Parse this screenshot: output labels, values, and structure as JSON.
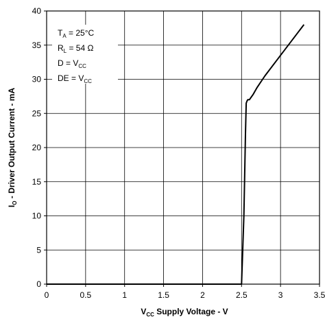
{
  "chart_data": {
    "type": "line",
    "x_axis": {
      "label_main": "V",
      "label_sub": "CC",
      "label_rest": " Supply Voltage - V",
      "range": [
        0,
        3.5
      ],
      "ticks": [
        "0",
        "0.5",
        "1",
        "1.5",
        "2",
        "2.5",
        "3",
        "3.5"
      ]
    },
    "y_axis": {
      "label_main": "I",
      "label_sub": "O",
      "label_rest": " - Driver Output Current - mA",
      "range": [
        0,
        40
      ],
      "ticks": [
        "0",
        "5",
        "10",
        "15",
        "20",
        "25",
        "30",
        "35",
        "40"
      ]
    },
    "grid": true,
    "annotations": [
      {
        "main": "T",
        "sub": "A",
        "rest": " = 25°C"
      },
      {
        "main": "R",
        "sub": "L",
        "rest": " = 54 Ω"
      },
      {
        "main": "D = V",
        "sub": "CC",
        "rest": ""
      },
      {
        "main": "DE = V",
        "sub": "CC",
        "rest": ""
      }
    ],
    "series": [
      {
        "x": [
          0,
          2.5,
          2.53,
          2.55,
          2.56,
          2.57,
          2.58,
          2.6,
          2.65,
          2.7,
          2.8,
          3.0,
          3.2,
          3.3
        ],
        "y": [
          0,
          0,
          10,
          22,
          26.5,
          26.8,
          27.0,
          27.0,
          27.8,
          28.8,
          30.5,
          33.5,
          36.5,
          38
        ]
      }
    ],
    "color": "#000000"
  }
}
